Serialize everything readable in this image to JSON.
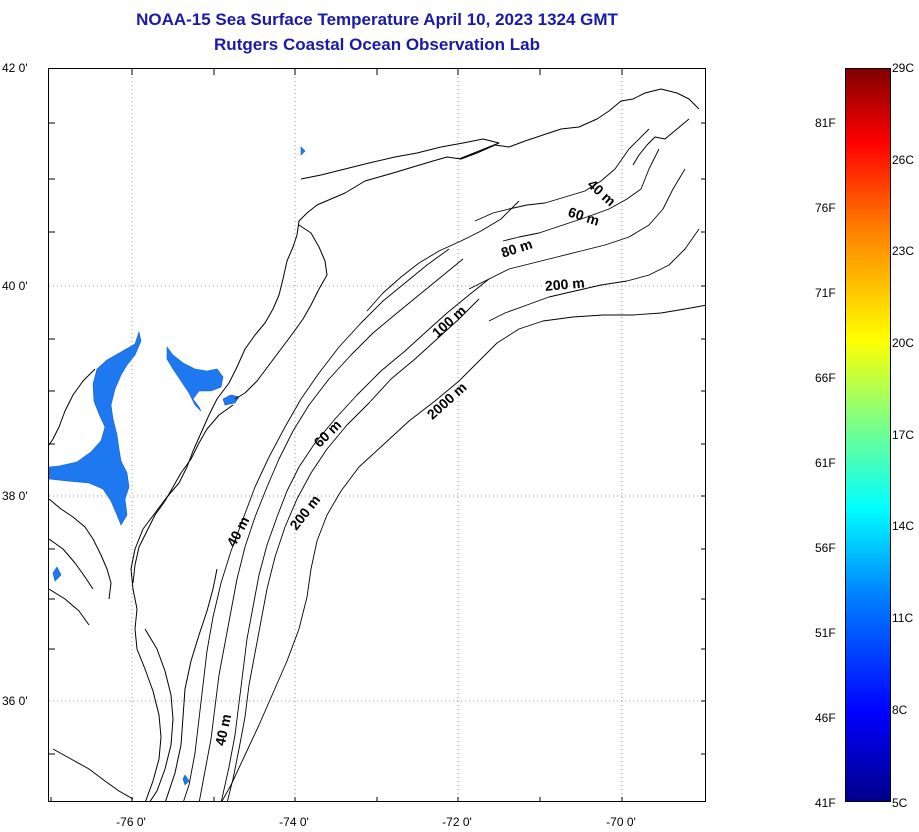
{
  "header": {
    "title": "NOAA-15 Sea Surface Temperature April 10, 2023 1324 GMT",
    "subtitle": "Rutgers Coastal Ocean Observation Lab"
  },
  "map": {
    "lat_labels": [
      "42 0'",
      "40 0'",
      "38 0'",
      "36 0'"
    ],
    "lon_labels": [
      "-76 0'",
      "-74 0'",
      "-72 0'",
      "-70 0'"
    ],
    "contour_labels": [
      "40 m",
      "60 m",
      "80 m",
      "200 m",
      "100 m",
      "2000 m",
      "60 m",
      "40 m",
      "200 m",
      "40 m"
    ],
    "land_color": "#ffffff",
    "sst_fill_color": "#1e78f0",
    "grid_style": "dotted"
  },
  "colorbar": {
    "fahrenheit_labels": [
      "81F",
      "76F",
      "71F",
      "66F",
      "61F",
      "56F",
      "51F",
      "46F",
      "41F"
    ],
    "celsius_labels": [
      "29C",
      "26C",
      "23C",
      "20C",
      "17C",
      "14C",
      "11C",
      "8C",
      "5C"
    ],
    "colors": [
      "#00008b",
      "#0000ff",
      "#0080ff",
      "#00ffff",
      "#80ff80",
      "#ffff00",
      "#ff8000",
      "#ff0000",
      "#800000"
    ]
  }
}
